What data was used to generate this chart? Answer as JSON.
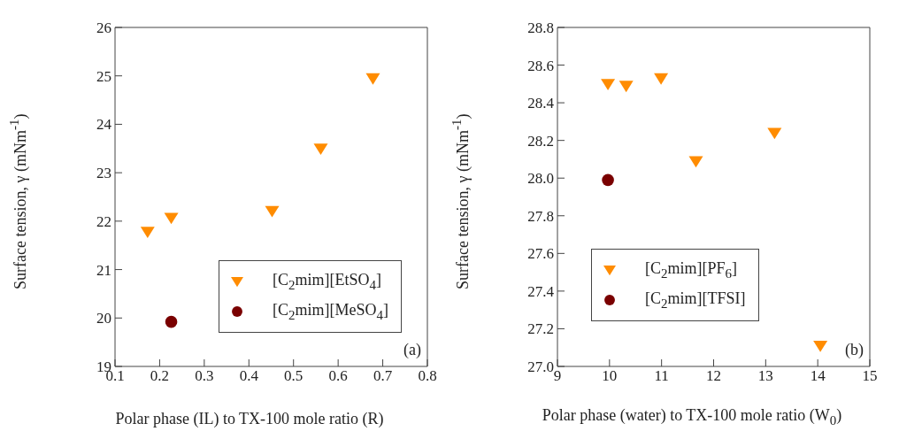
{
  "chart_data": [
    {
      "type": "scatter",
      "xlabel": "Polar phase (IL) to TX-100 mole ratio (R)",
      "ylabel": "Surface tension, γ (mNm$^{-1}$)",
      "xlim": [
        0.1,
        0.8
      ],
      "xticks": [
        0.1,
        0.2,
        0.3,
        0.4,
        0.5,
        0.6,
        0.7,
        0.8
      ],
      "ylim": [
        19,
        26
      ],
      "yticks": [
        19,
        20,
        21,
        22,
        23,
        24,
        25,
        26
      ],
      "grid": false,
      "legend": "bottom right",
      "annotations": [
        "(a)"
      ],
      "series": [
        {
          "name": "[C$_{2}$mim][EtSO$_{4}$]",
          "color": "#ff8c00",
          "marker": "triangle",
          "x": [
            0.173,
            0.226,
            0.452,
            0.561,
            0.678
          ],
          "values": [
            21.78,
            22.07,
            22.21,
            23.5,
            24.95
          ]
        },
        {
          "name": "[C$_{2}$mim][MeSO$_{4}$]",
          "color": "#7a0000",
          "marker": "circle",
          "x": [
            0.226
          ],
          "values": [
            19.92
          ]
        }
      ]
    },
    {
      "type": "scatter",
      "xlabel": "Polar phase (water) to TX-100 mole ratio (W$_{0}$)",
      "ylabel": "Surface tension, γ (mNm$^{-1}$)",
      "xlim": [
        9,
        15
      ],
      "xticks": [
        9,
        10,
        11,
        12,
        13,
        14,
        15
      ],
      "ylim": [
        27.0,
        28.8
      ],
      "yticks": [
        {
          "value": 27.0,
          "label": "27.0"
        },
        {
          "value": 27.2,
          "label": "27.2"
        },
        {
          "value": 27.4,
          "label": "27.4"
        },
        {
          "value": 27.6,
          "label": "27.6"
        },
        {
          "value": 27.8,
          "label": "27.8"
        },
        {
          "value": 28.0,
          "label": "28.0"
        },
        {
          "value": 28.2,
          "label": "28.2"
        },
        {
          "value": 28.4,
          "label": "28.4"
        },
        {
          "value": 28.6,
          "label": "28.6"
        },
        {
          "value": 28.8,
          "label": "28.8"
        }
      ],
      "grid": false,
      "legend": "bottom left",
      "annotations": [
        "(b)"
      ],
      "series": [
        {
          "name": "[C$_{2}$mim][PF$_{6}$]",
          "color": "#ff8c00",
          "marker": "triangle",
          "x": [
            9.97,
            10.32,
            10.99,
            11.66,
            13.17,
            14.05
          ],
          "values": [
            28.5,
            28.49,
            28.53,
            28.09,
            28.24,
            27.11
          ]
        },
        {
          "name": "[C$_{2}$mim][TFSI]",
          "color": "#7a0000",
          "marker": "circle",
          "x": [
            9.97
          ],
          "values": [
            27.99
          ]
        }
      ]
    }
  ]
}
